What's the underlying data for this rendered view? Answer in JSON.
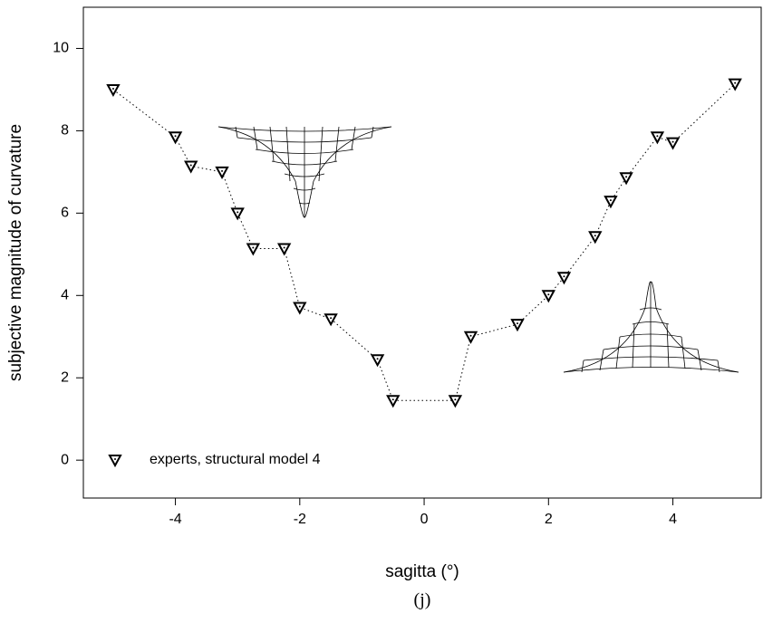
{
  "chart_data": {
    "type": "line",
    "xlabel": "sagitta (°)",
    "ylabel": "subjective magnitude of curvature",
    "caption": "(j)",
    "xlim": [
      -5.48,
      5.42
    ],
    "ylim": [
      -0.92,
      11.0
    ],
    "xticks": [
      -4,
      -2,
      0,
      2,
      4
    ],
    "yticks": [
      0,
      2,
      4,
      6,
      8,
      10
    ],
    "marker": "triangle-down",
    "linestyle": "dotted",
    "legend": "lower left",
    "series": [
      {
        "name": "experts, structural model 4",
        "color": "#000000",
        "x": [
          -5,
          -4,
          -3.75,
          -3.25,
          -3,
          -2.75,
          -2.25,
          -2,
          -1.5,
          -0.75,
          -0.5,
          0.5,
          0.75,
          1.5,
          2,
          2.25,
          2.75,
          3,
          3.25,
          3.75,
          4,
          5
        ],
        "values": [
          9.0,
          7.85,
          7.14,
          7.0,
          6.0,
          5.14,
          5.14,
          3.71,
          3.43,
          2.44,
          1.45,
          1.45,
          3.0,
          3.3,
          4.0,
          4.44,
          5.43,
          6.29,
          6.86,
          7.85,
          7.71,
          9.14
        ]
      }
    ]
  }
}
